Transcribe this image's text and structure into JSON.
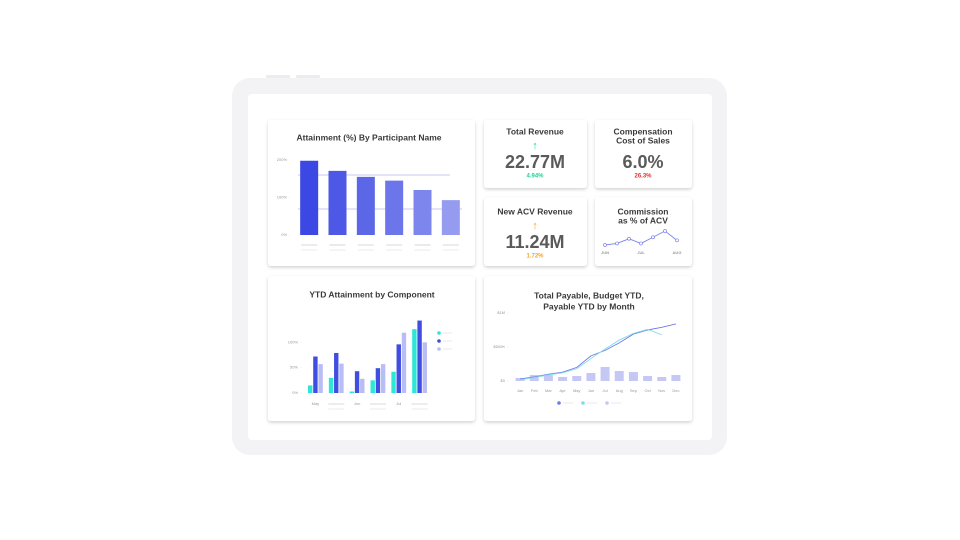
{
  "attainment": {
    "type": "bar",
    "title": "Attainment (%) By Participant Name",
    "categories": [
      null,
      null,
      null,
      null,
      null,
      null
    ],
    "values": [
      198,
      171,
      155,
      145,
      120,
      93
    ],
    "colors": [
      "#3b48e4",
      "#4d59e6",
      "#5c67e8",
      "#6c76ea",
      "#7d86ed",
      "#959cf0"
    ],
    "ylim": [
      0,
      200
    ],
    "yticks": [
      {
        "value": 0,
        "label": "0%"
      },
      {
        "value": 100,
        "label": "100%"
      },
      {
        "value": 200,
        "label": "200%"
      }
    ]
  },
  "kpis": [
    {
      "title": [
        "Total Revenue"
      ],
      "arrow": "↑",
      "value": "22.77M",
      "change": "4.94%",
      "color": "#1fd39a"
    },
    {
      "title": [
        "Compensation",
        "Cost of Sales"
      ],
      "value": "6.0%",
      "change": "26.3%",
      "color": "#e5322d"
    },
    {
      "title": [
        "New ACV Revenue"
      ],
      "arrow": "↑",
      "value": "11.24M",
      "change": "1.72%",
      "color": "#f5a623"
    }
  ],
  "commission": {
    "type": "line",
    "title": [
      "Commission",
      "as % of ACV"
    ],
    "categories": [
      "JUN",
      null,
      null,
      "JUL",
      null,
      null,
      "AUG"
    ],
    "values": [
      1.2,
      1.4,
      2.0,
      1.4,
      2.2,
      3.0,
      1.8
    ],
    "color": "#7d86ed"
  },
  "components": {
    "type": "grouped-bar",
    "title": "YTD Attainment by Component",
    "categories": [
      "May",
      null,
      "Jun",
      null,
      "Jul",
      null
    ],
    "series": [
      {
        "color": "#2ee6d6",
        "values": [
          15,
          30,
          3,
          25,
          42,
          126
        ]
      },
      {
        "color": "#3f4de0",
        "values": [
          72,
          79,
          43,
          49,
          96,
          143
        ]
      },
      {
        "color": "#b9bdf5",
        "values": [
          57,
          58,
          28,
          57,
          119,
          100
        ]
      }
    ],
    "ylim": [
      0,
      150
    ],
    "yticks": [
      {
        "value": 0,
        "label": "0%"
      },
      {
        "value": 50,
        "label": "50%"
      },
      {
        "value": 100,
        "label": "100%"
      }
    ]
  },
  "payable": {
    "type": "combo",
    "title": [
      "Total Payable, Budget YTD,",
      "Payable YTD by Month"
    ],
    "categories": [
      "Jan",
      "Feb",
      "Mar",
      "Apr",
      "May",
      "Jun",
      "Jul",
      "Aug",
      "Sep",
      "Oct",
      "Nov",
      "Dec"
    ],
    "series": [
      {
        "kind": "line",
        "color": "#6f7be8",
        "values": [
          30000,
          60000,
          100000,
          130000,
          200000,
          370000,
          450000,
          560000,
          690000,
          750000,
          790000,
          840000
        ]
      },
      {
        "kind": "line",
        "color": "#7fdcea",
        "values": [
          20000,
          50000,
          90000,
          120000,
          180000,
          330000,
          470000,
          600000,
          700000,
          760000,
          680000,
          null
        ]
      },
      {
        "kind": "bar",
        "color": "#c5c8f5",
        "values": [
          44000,
          88000,
          88000,
          59000,
          74000,
          118000,
          206000,
          147000,
          132000,
          74000,
          59000,
          88000
        ]
      }
    ],
    "ylim": [
      0,
      1000000
    ],
    "yticks": [
      {
        "value": 0,
        "label": "$0"
      },
      {
        "value": 500000,
        "label": "$500K"
      },
      {
        "value": 1000000,
        "label": "$1M"
      }
    ]
  }
}
